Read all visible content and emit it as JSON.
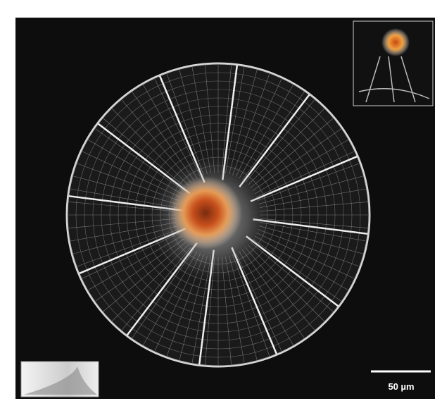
{
  "scale_bar": {
    "label": "50 µm"
  }
}
